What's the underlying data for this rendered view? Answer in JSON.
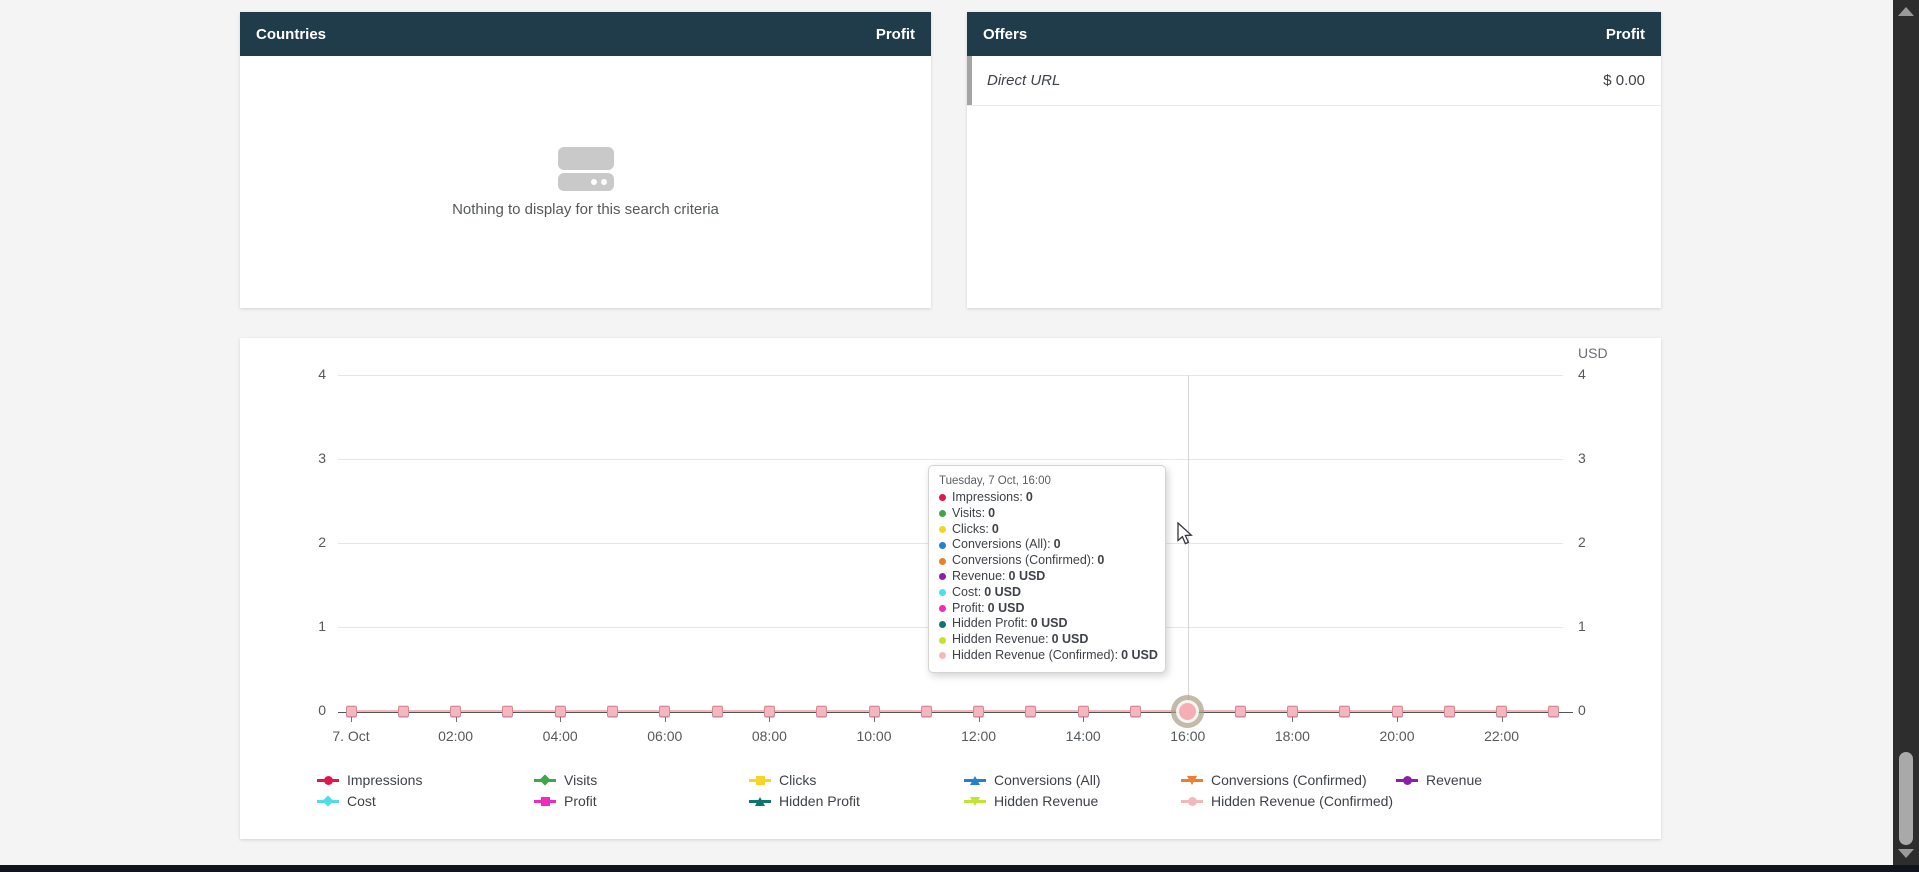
{
  "countries_panel": {
    "title": "Countries",
    "metric_label": "Profit",
    "empty_message": "Nothing to display for this search criteria"
  },
  "offers_panel": {
    "title": "Offers",
    "metric_label": "Profit",
    "rows": [
      {
        "name": "Direct URL",
        "value": "$ 0.00"
      }
    ]
  },
  "chart_data": {
    "type": "line",
    "title": "",
    "x": [
      "00:00",
      "01:00",
      "02:00",
      "03:00",
      "04:00",
      "05:00",
      "06:00",
      "07:00",
      "08:00",
      "09:00",
      "10:00",
      "11:00",
      "12:00",
      "13:00",
      "14:00",
      "15:00",
      "16:00",
      "17:00",
      "18:00",
      "19:00",
      "20:00",
      "21:00",
      "22:00",
      "23:00"
    ],
    "x_tick_labels": [
      "7. Oct",
      "02:00",
      "04:00",
      "06:00",
      "08:00",
      "10:00",
      "12:00",
      "14:00",
      "16:00",
      "18:00",
      "20:00",
      "22:00"
    ],
    "ylim": [
      0,
      4
    ],
    "y_ticks": [
      0,
      1,
      2,
      3,
      4
    ],
    "right_axis_title": "USD",
    "grid": true,
    "legend_position": "bottom",
    "series": [
      {
        "name": "Impressions",
        "color": "#e2164a",
        "marker": "circle",
        "values": [
          0,
          0,
          0,
          0,
          0,
          0,
          0,
          0,
          0,
          0,
          0,
          0,
          0,
          0,
          0,
          0,
          0,
          0,
          0,
          0,
          0,
          0,
          0,
          0
        ]
      },
      {
        "name": "Visits",
        "color": "#3fa74a",
        "marker": "diamond",
        "values": [
          0,
          0,
          0,
          0,
          0,
          0,
          0,
          0,
          0,
          0,
          0,
          0,
          0,
          0,
          0,
          0,
          0,
          0,
          0,
          0,
          0,
          0,
          0,
          0
        ]
      },
      {
        "name": "Clicks",
        "color": "#f6d52a",
        "marker": "square",
        "values": [
          0,
          0,
          0,
          0,
          0,
          0,
          0,
          0,
          0,
          0,
          0,
          0,
          0,
          0,
          0,
          0,
          0,
          0,
          0,
          0,
          0,
          0,
          0,
          0
        ]
      },
      {
        "name": "Conversions (All)",
        "color": "#2381d0",
        "marker": "triangle",
        "values": [
          0,
          0,
          0,
          0,
          0,
          0,
          0,
          0,
          0,
          0,
          0,
          0,
          0,
          0,
          0,
          0,
          0,
          0,
          0,
          0,
          0,
          0,
          0,
          0
        ]
      },
      {
        "name": "Conversions (Confirmed)",
        "color": "#ef7d2c",
        "marker": "triangle-down",
        "values": [
          0,
          0,
          0,
          0,
          0,
          0,
          0,
          0,
          0,
          0,
          0,
          0,
          0,
          0,
          0,
          0,
          0,
          0,
          0,
          0,
          0,
          0,
          0,
          0
        ]
      },
      {
        "name": "Revenue",
        "color": "#8a1fad",
        "marker": "circle",
        "values": [
          0,
          0,
          0,
          0,
          0,
          0,
          0,
          0,
          0,
          0,
          0,
          0,
          0,
          0,
          0,
          0,
          0,
          0,
          0,
          0,
          0,
          0,
          0,
          0
        ]
      },
      {
        "name": "Cost",
        "color": "#4fdde8",
        "marker": "diamond",
        "values": [
          0,
          0,
          0,
          0,
          0,
          0,
          0,
          0,
          0,
          0,
          0,
          0,
          0,
          0,
          0,
          0,
          0,
          0,
          0,
          0,
          0,
          0,
          0,
          0
        ]
      },
      {
        "name": "Profit",
        "color": "#ee2bc0",
        "marker": "square",
        "values": [
          0,
          0,
          0,
          0,
          0,
          0,
          0,
          0,
          0,
          0,
          0,
          0,
          0,
          0,
          0,
          0,
          0,
          0,
          0,
          0,
          0,
          0,
          0,
          0
        ]
      },
      {
        "name": "Hidden Profit",
        "color": "#0f756f",
        "marker": "triangle",
        "values": [
          0,
          0,
          0,
          0,
          0,
          0,
          0,
          0,
          0,
          0,
          0,
          0,
          0,
          0,
          0,
          0,
          0,
          0,
          0,
          0,
          0,
          0,
          0,
          0
        ]
      },
      {
        "name": "Hidden Revenue",
        "color": "#c2e431",
        "marker": "triangle-down",
        "values": [
          0,
          0,
          0,
          0,
          0,
          0,
          0,
          0,
          0,
          0,
          0,
          0,
          0,
          0,
          0,
          0,
          0,
          0,
          0,
          0,
          0,
          0,
          0,
          0
        ]
      },
      {
        "name": "Hidden Revenue (Confirmed)",
        "color": "#f5b7ba",
        "marker": "circle",
        "values": [
          0,
          0,
          0,
          0,
          0,
          0,
          0,
          0,
          0,
          0,
          0,
          0,
          0,
          0,
          0,
          0,
          0,
          0,
          0,
          0,
          0,
          0,
          0,
          0
        ]
      }
    ],
    "tooltip": {
      "title": "Tuesday, 7 Oct, 16:00",
      "hover_index": 16,
      "items": [
        {
          "name": "Impressions",
          "value": "0"
        },
        {
          "name": "Visits",
          "value": "0"
        },
        {
          "name": "Clicks",
          "value": "0"
        },
        {
          "name": "Conversions (All)",
          "value": "0"
        },
        {
          "name": "Conversions (Confirmed)",
          "value": "0"
        },
        {
          "name": "Revenue",
          "value": "0 USD"
        },
        {
          "name": "Cost",
          "value": "0 USD"
        },
        {
          "name": "Profit",
          "value": "0 USD"
        },
        {
          "name": "Hidden Profit",
          "value": "0 USD"
        },
        {
          "name": "Hidden Revenue",
          "value": "0 USD"
        },
        {
          "name": "Hidden Revenue (Confirmed)",
          "value": "0 USD"
        }
      ]
    }
  }
}
